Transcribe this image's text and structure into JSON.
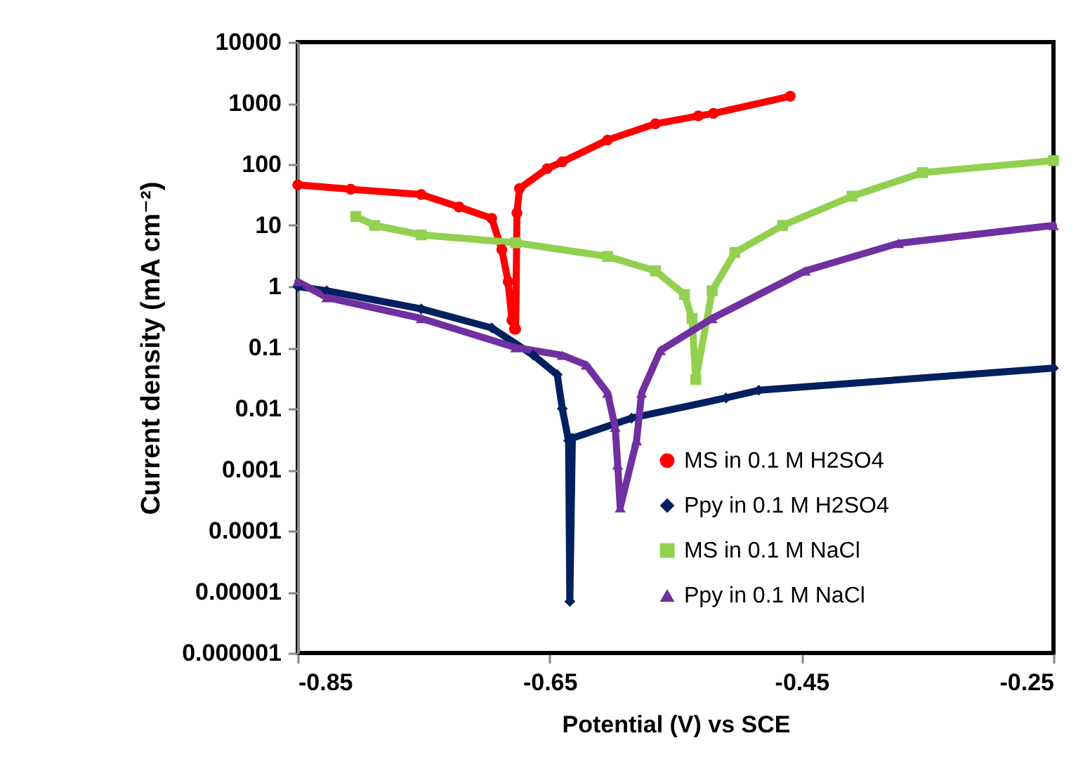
{
  "chart_data": {
    "type": "line",
    "xlabel": "Potential (V)  vs SCE",
    "ylabel": "Current density (mA cm⁻²)",
    "log": "y",
    "xlim": [
      -0.85,
      -0.25
    ],
    "xticks": [
      -0.85,
      -0.65,
      -0.45,
      -0.25
    ],
    "ylim": [
      1e-06,
      10000
    ],
    "yticks": [
      {
        "value": 1e-06,
        "label": "0.000001"
      },
      {
        "value": 1e-05,
        "label": "0.00001"
      },
      0.0001,
      0.001,
      0.01,
      0.1,
      1,
      10,
      100,
      1000,
      10000
    ],
    "grid": false,
    "legend": "bottom right",
    "series": [
      {
        "name": "MS in 0.1 M H2SO4",
        "color": "#ff0000",
        "marker": "circle",
        "x": [
          -0.85,
          -0.808,
          -0.752,
          -0.722,
          -0.696,
          -0.688,
          -0.683,
          -0.68,
          -0.678,
          -0.677,
          -0.676,
          -0.674,
          -0.652,
          -0.64,
          -0.604,
          -0.566,
          -0.532,
          -0.52,
          -0.459
        ],
        "values": [
          46,
          39,
          32,
          20,
          13,
          4,
          1.2,
          0.28,
          0.2,
          0.2,
          16,
          40,
          85,
          110,
          250,
          460,
          620,
          680,
          1300
        ]
      },
      {
        "name": "Ppy in 0.1 M H2SO4",
        "color": "#002060",
        "marker": "diamond",
        "x": [
          -0.85,
          -0.827,
          -0.752,
          -0.696,
          -0.663,
          -0.644,
          -0.64,
          -0.635,
          -0.634,
          -0.632,
          -0.585,
          -0.51,
          -0.484,
          -0.25
        ],
        "values": [
          1,
          0.85,
          0.43,
          0.21,
          0.075,
          0.036,
          0.01,
          0.003,
          7e-06,
          0.0033,
          0.007,
          0.015,
          0.02,
          0.046
        ]
      },
      {
        "name": "MS in 0.1 M NaCl",
        "color": "#92d050",
        "marker": "square",
        "x": [
          -0.804,
          -0.789,
          -0.752,
          -0.677,
          -0.604,
          -0.566,
          -0.543,
          -0.537,
          -0.534,
          -0.521,
          -0.503,
          -0.465,
          -0.41,
          -0.354,
          -0.25
        ],
        "values": [
          14,
          10,
          7,
          5.2,
          3.1,
          1.8,
          0.74,
          0.3,
          0.03,
          0.85,
          3.6,
          10,
          30,
          73,
          115
        ]
      },
      {
        "name": "Ppy in 0.1 M NaCl",
        "color": "#7030a0",
        "marker": "triangle",
        "x": [
          -0.85,
          -0.827,
          -0.752,
          -0.677,
          -0.64,
          -0.621,
          -0.604,
          -0.598,
          -0.596,
          -0.594,
          -0.581,
          -0.577,
          -0.562,
          -0.521,
          -0.447,
          -0.373,
          -0.25
        ],
        "values": [
          1.2,
          0.66,
          0.3,
          0.1,
          0.075,
          0.052,
          0.018,
          0.005,
          0.0012,
          0.00024,
          0.003,
          0.018,
          0.09,
          0.3,
          1.8,
          5.1,
          10
        ]
      }
    ]
  }
}
